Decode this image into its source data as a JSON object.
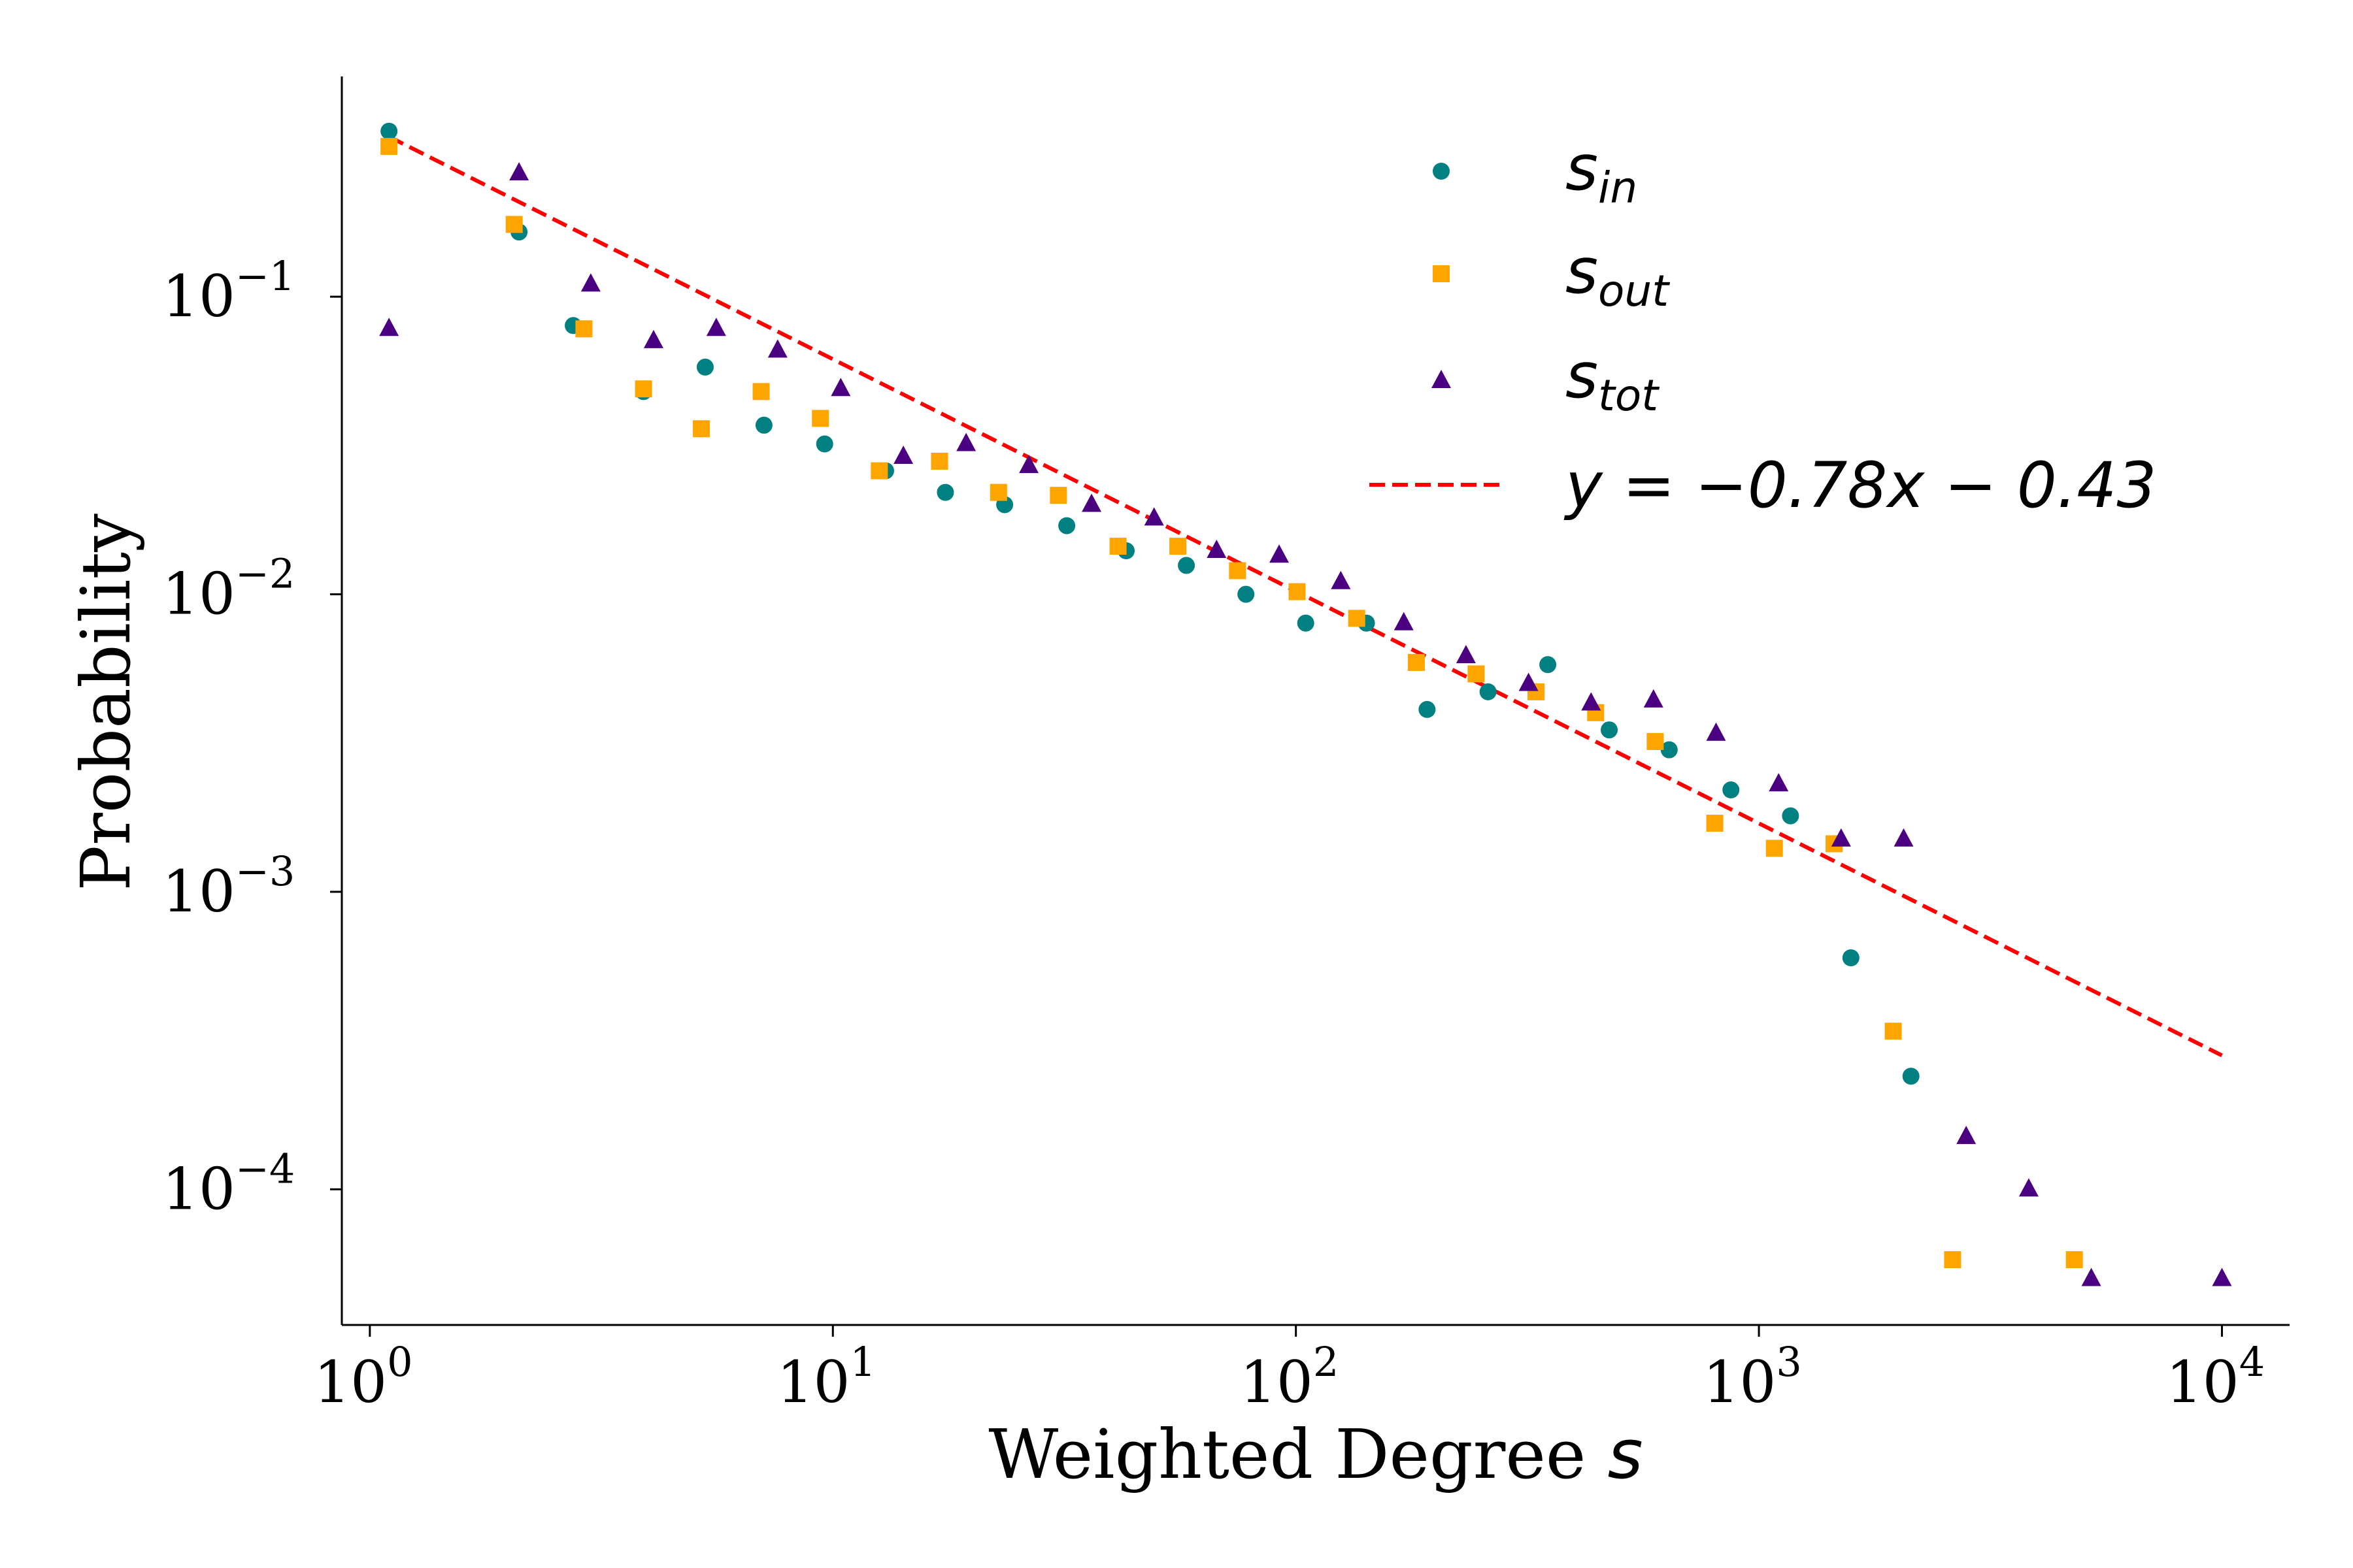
{
  "chart_data": {
    "type": "scatter",
    "xscale": "log",
    "yscale": "log",
    "xlim": [
      0.87,
      14000
    ],
    "ylim": [
      3.5e-05,
      0.55
    ],
    "xlabel_text": "Weighted Degree ",
    "xlabel_var": "s",
    "ylabel": "Probability",
    "grid": false,
    "legend_position": "top-right",
    "x_ticks": [
      {
        "value": 1,
        "base": "10",
        "exp": "0"
      },
      {
        "value": 10,
        "base": "10",
        "exp": "1"
      },
      {
        "value": 100,
        "base": "10",
        "exp": "2"
      },
      {
        "value": 1000,
        "base": "10",
        "exp": "3"
      },
      {
        "value": 10000,
        "base": "10",
        "exp": "4"
      }
    ],
    "y_ticks": [
      {
        "value": 0.1,
        "base": "10",
        "exp": "−1"
      },
      {
        "value": 0.01,
        "base": "10",
        "exp": "−2"
      },
      {
        "value": 0.001,
        "base": "10",
        "exp": "−3"
      },
      {
        "value": 0.0001,
        "base": "10",
        "exp": "−4"
      }
    ],
    "series": [
      {
        "name_base": "s",
        "name_sub": "in",
        "marker": "circle",
        "color": "#008080",
        "x": [
          1.1,
          2.1,
          2.75,
          3.9,
          5.3,
          7.1,
          9.6,
          13,
          17.5,
          23.5,
          32,
          43,
          58,
          78,
          105,
          142,
          192,
          260,
          350,
          475,
          640,
          870,
          1170,
          1580,
          2130
        ],
        "y": [
          0.36,
          0.165,
          0.08,
          0.048,
          0.058,
          0.037,
          0.032,
          0.026,
          0.022,
          0.02,
          0.017,
          0.014,
          0.0125,
          0.01,
          0.008,
          0.008,
          0.0041,
          0.0047,
          0.0058,
          0.0035,
          0.003,
          0.0022,
          0.0018,
          0.0006,
          0.00024
        ]
      },
      {
        "name_base": "s",
        "name_sub": "out",
        "marker": "square",
        "color": "#FFA500",
        "x": [
          1.1,
          2.05,
          2.9,
          3.9,
          5.2,
          7.0,
          9.4,
          12.6,
          17.0,
          22.8,
          30.7,
          41.3,
          55.6,
          74.8,
          100.6,
          135.3,
          182,
          245,
          330,
          444,
          597,
          803,
          1080,
          1453,
          1950,
          2620,
          4800
        ],
        "y": [
          0.32,
          0.175,
          0.078,
          0.049,
          0.036,
          0.048,
          0.039,
          0.026,
          0.028,
          0.022,
          0.0215,
          0.0145,
          0.0145,
          0.012,
          0.0102,
          0.0083,
          0.0059,
          0.0054,
          0.0047,
          0.004,
          0.0032,
          0.0017,
          0.0014,
          0.00145,
          0.00034,
          5.8e-05,
          5.8e-05
        ]
      },
      {
        "name_base": "s",
        "name_sub": "tot",
        "marker": "triangle",
        "color": "#4B0082",
        "x": [
          1.1,
          2.1,
          3.0,
          4.1,
          5.6,
          7.6,
          10.4,
          14.2,
          19.4,
          26.5,
          36.2,
          49.4,
          67.4,
          92,
          125,
          171,
          233,
          318,
          434,
          592,
          808,
          1103,
          1505,
          2054,
          2803,
          3826,
          5222,
          10000
        ],
        "y": [
          0.078,
          0.26,
          0.11,
          0.071,
          0.078,
          0.066,
          0.049,
          0.029,
          0.032,
          0.027,
          0.02,
          0.018,
          0.014,
          0.0135,
          0.011,
          0.008,
          0.0062,
          0.005,
          0.0043,
          0.0044,
          0.0034,
          0.0023,
          0.0015,
          0.0015,
          0.00015,
          0.0001,
          5e-05,
          5e-05
        ]
      }
    ],
    "fit_line": {
      "label": "y = −0.78x − 0.43",
      "color": "#FF0000",
      "style": "dashed",
      "slope": -0.78,
      "intercept": -0.43,
      "x_start": 1.1,
      "x_end": 10000
    }
  }
}
